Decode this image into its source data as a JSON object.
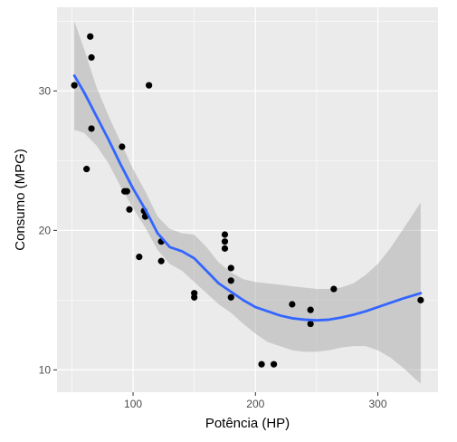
{
  "chart_data": {
    "type": "scatter",
    "title": "",
    "xlabel": "Potência (HP)",
    "ylabel": "Consumo (MPG)",
    "xlim": [
      37.85,
      349.15
    ],
    "ylim": [
      8.4,
      36.0
    ],
    "x_ticks": [
      100,
      200,
      300
    ],
    "y_ticks": [
      10,
      20,
      30
    ],
    "grid": true,
    "legend": "none",
    "points": [
      {
        "x": 52,
        "y": 30.4
      },
      {
        "x": 62,
        "y": 24.4
      },
      {
        "x": 65,
        "y": 33.9
      },
      {
        "x": 66,
        "y": 32.4
      },
      {
        "x": 66,
        "y": 27.3
      },
      {
        "x": 91,
        "y": 26.0
      },
      {
        "x": 93,
        "y": 22.8
      },
      {
        "x": 95,
        "y": 22.8
      },
      {
        "x": 97,
        "y": 21.5
      },
      {
        "x": 105,
        "y": 18.1
      },
      {
        "x": 109,
        "y": 21.4
      },
      {
        "x": 110,
        "y": 21.0
      },
      {
        "x": 110,
        "y": 21.0
      },
      {
        "x": 113,
        "y": 30.4
      },
      {
        "x": 123,
        "y": 19.2
      },
      {
        "x": 123,
        "y": 17.8
      },
      {
        "x": 150,
        "y": 15.5
      },
      {
        "x": 150,
        "y": 15.2
      },
      {
        "x": 175,
        "y": 19.7
      },
      {
        "x": 175,
        "y": 19.2
      },
      {
        "x": 175,
        "y": 18.7
      },
      {
        "x": 180,
        "y": 17.3
      },
      {
        "x": 180,
        "y": 16.4
      },
      {
        "x": 180,
        "y": 15.2
      },
      {
        "x": 205,
        "y": 10.4
      },
      {
        "x": 215,
        "y": 10.4
      },
      {
        "x": 230,
        "y": 14.7
      },
      {
        "x": 245,
        "y": 14.3
      },
      {
        "x": 245,
        "y": 13.3
      },
      {
        "x": 264,
        "y": 15.8
      },
      {
        "x": 335,
        "y": 15.0
      }
    ],
    "smooth": {
      "x": [
        52,
        60,
        70,
        80,
        90,
        100,
        110,
        120,
        130,
        140,
        150,
        160,
        170,
        180,
        190,
        200,
        210,
        220,
        230,
        240,
        250,
        260,
        270,
        280,
        290,
        300,
        310,
        320,
        335
      ],
      "y": [
        31.1,
        29.9,
        28.2,
        26.5,
        24.7,
        23.0,
        21.5,
        19.8,
        18.8,
        18.5,
        18.0,
        17.1,
        16.2,
        15.6,
        15.0,
        14.5,
        14.2,
        13.9,
        13.7,
        13.6,
        13.55,
        13.6,
        13.75,
        13.95,
        14.2,
        14.5,
        14.8,
        15.1,
        15.5
      ],
      "lower": [
        27.2,
        27.0,
        26.1,
        24.8,
        23.1,
        21.6,
        20.2,
        18.6,
        17.6,
        17.1,
        16.3,
        15.5,
        14.7,
        14.1,
        13.3,
        12.6,
        12.0,
        11.7,
        11.4,
        11.3,
        11.3,
        11.4,
        11.6,
        11.7,
        11.7,
        11.4,
        10.9,
        10.2,
        9.0
      ],
      "upper": [
        35.0,
        33.0,
        30.3,
        28.2,
        26.3,
        24.4,
        22.8,
        21.0,
        20.1,
        19.8,
        19.7,
        18.8,
        17.7,
        17.0,
        16.5,
        16.3,
        16.2,
        16.1,
        16.0,
        15.9,
        15.8,
        15.8,
        15.9,
        16.2,
        16.8,
        17.6,
        18.7,
        20.0,
        22.0
      ]
    },
    "colors": {
      "panel": "#ebebeb",
      "grid_major": "#ffffff",
      "point": "#000000",
      "line": "#3366ff",
      "ribbon": "#999999"
    }
  }
}
